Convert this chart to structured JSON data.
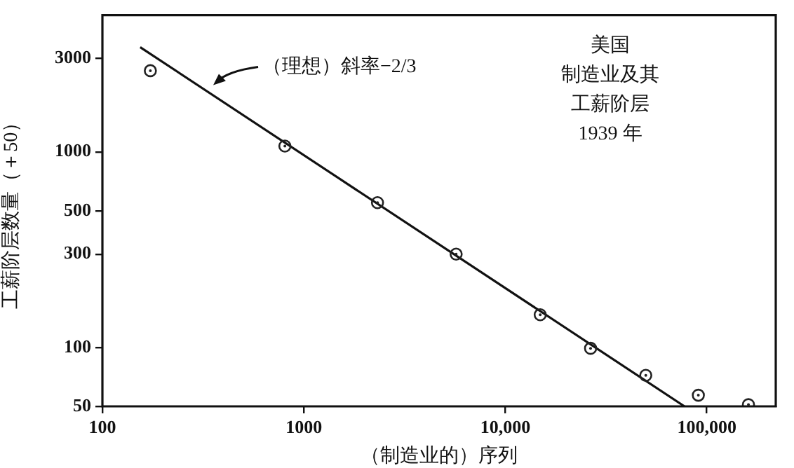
{
  "chart_data": {
    "type": "scatter",
    "xlabel": "（制造业的）序列",
    "ylabel": "工薪阶层数量（＋50）",
    "log": "xy",
    "grid": false,
    "legend": false,
    "marker": "circle",
    "xlim": [
      100,
      220000
    ],
    "xticks": [
      100,
      1000,
      {
        "value": 10000,
        "label": "10,000"
      },
      {
        "value": 100000,
        "label": "100,000"
      }
    ],
    "ylim": [
      50,
      5000
    ],
    "yticks": [
      50,
      100,
      300,
      500,
      1000,
      3000
    ],
    "series": [
      {
        "type": "scatter",
        "color": "#222222",
        "x": [
          173,
          805,
          2320,
          5700,
          14900,
          26500,
          49800,
          90800,
          161000
        ],
        "values": [
          2600,
          1070,
          550,
          300,
          147,
          99,
          72,
          57,
          51
        ]
      },
      {
        "type": "line",
        "color": "#111111",
        "line_style": "solid",
        "marker": "none",
        "x": [
          154,
          77500
        ],
        "values": [
          3430,
          50
        ]
      }
    ],
    "annotations": [
      "（理想）斜率−2/3",
      "美国",
      "制造业及其",
      "工薪阶层",
      "1939 年"
    ]
  }
}
